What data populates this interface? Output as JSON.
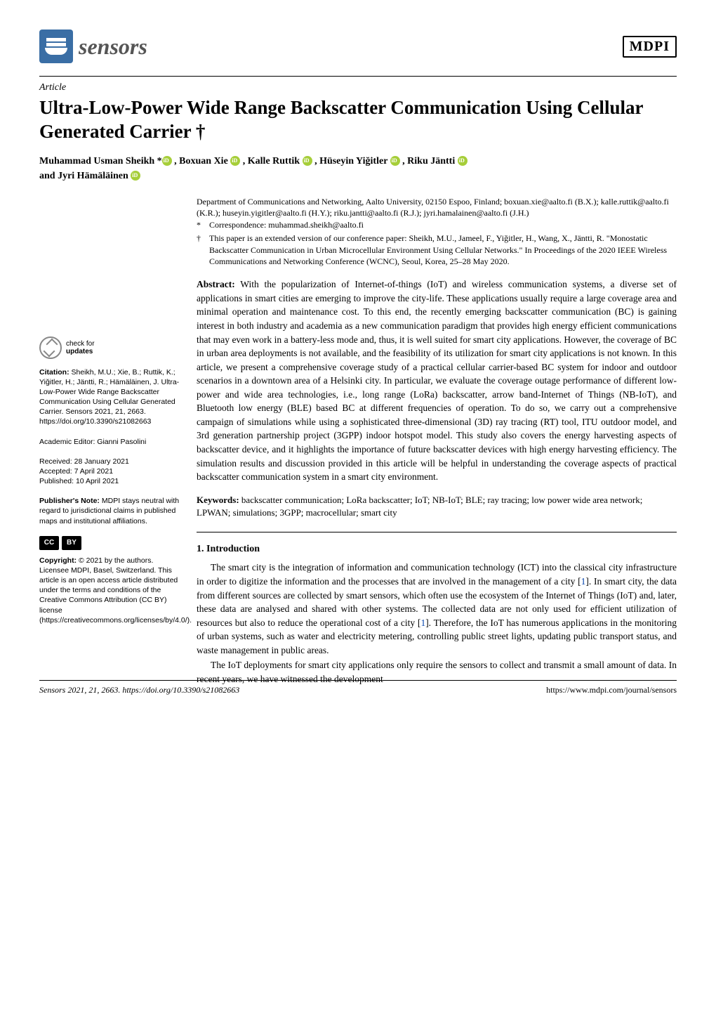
{
  "header": {
    "journal_name": "sensors",
    "publisher_logo": "MDPI"
  },
  "article": {
    "type": "Article",
    "title": "Ultra-Low-Power Wide Range Backscatter Communication Using Cellular Generated Carrier †",
    "authors_line1": "Muhammad Usman Sheikh *",
    "authors_line1b": ", Boxuan Xie",
    "authors_line1c": ", Kalle Ruttik",
    "authors_line1d": ", Hüseyin Yiğitler",
    "authors_line1e": ", Riku Jäntti",
    "authors_line2": "and Jyri Hämäläinen"
  },
  "affiliation": {
    "dept": "Department of Communications and Networking, Aalto University, 02150 Espoo, Finland; boxuan.xie@aalto.fi (B.X.); kalle.ruttik@aalto.fi (K.R.); huseyin.yigitler@aalto.fi (H.Y.); riku.jantti@aalto.fi (R.J.); jyri.hamalainen@aalto.fi (J.H.)",
    "corr_marker": "*",
    "corr": "Correspondence: muhammad.sheikh@aalto.fi",
    "note_marker": "†",
    "note": "This paper is an extended version of our conference paper: Sheikh, M.U., Jameel, F., Yiğitler, H., Wang, X., Jäntti, R. \"Monostatic Backscatter Communication in Urban Microcellular Environment Using Cellular Networks.\" In Proceedings of the 2020 IEEE Wireless Communications and Networking Conference (WCNC), Seoul, Korea, 25–28 May 2020."
  },
  "abstract": {
    "label": "Abstract:",
    "text": "With the popularization of Internet-of-things (IoT) and wireless communication systems, a diverse set of applications in smart cities are emerging to improve the city-life. These applications usually require a large coverage area and minimal operation and maintenance cost. To this end, the recently emerging backscatter communication (BC) is gaining interest in both industry and academia as a new communication paradigm that provides high energy efficient communications that may even work in a battery-less mode and, thus, it is well suited for smart city applications. However, the coverage of BC in urban area deployments is not available, and the feasibility of its utilization for smart city applications is not known. In this article, we present a comprehensive coverage study of a practical cellular carrier-based BC system for indoor and outdoor scenarios in a downtown area of a Helsinki city. In particular, we evaluate the coverage outage performance of different low-power and wide area technologies, i.e., long range (LoRa) backscatter, arrow band-Internet of Things (NB-IoT), and Bluetooth low energy (BLE) based BC at different frequencies of operation. To do so, we carry out a comprehensive campaign of simulations while using a sophisticated three-dimensional (3D) ray tracing (RT) tool, ITU outdoor model, and 3rd generation partnership project (3GPP) indoor hotspot model. This study also covers the energy harvesting aspects of backscatter device, and it highlights the importance of future backscatter devices with high energy harvesting efficiency. The simulation results and discussion provided in this article will be helpful in understanding the coverage aspects of practical backscatter communication system in a smart city environment."
  },
  "keywords": {
    "label": "Keywords:",
    "text": "backscatter communication; LoRa backscatter; IoT; NB-IoT; BLE; ray tracing; low power wide area network; LPWAN; simulations; 3GPP; macrocellular; smart city"
  },
  "intro": {
    "heading": "1. Introduction",
    "p1a": "The smart city is the integration of information and communication technology (ICT) into the classical city infrastructure in order to digitize the information and the processes that are involved in the management of a city [",
    "c1": "1",
    "p1b": "]. In smart city, the data from different sources are collected by smart sensors, which often use the ecosystem of the Internet of Things (IoT) and, later, these data are analysed and shared with other systems. The collected data are not only used for efficient utilization of resources but also to reduce the operational cost of a city [",
    "c2": "1",
    "p1c": "]. Therefore, the IoT has numerous applications in the monitoring of urban systems, such as water and electricity metering, controlling public street lights, updating public transport status, and waste management in public areas.",
    "p2": "The IoT deployments for smart city applications only require the sensors to collect and transmit a small amount of data. In recent years, we have witnessed the development"
  },
  "sidebar": {
    "updates_line1": "check for",
    "updates_line2": "updates",
    "citation_label": "Citation:",
    "citation_text": "Sheikh, M.U.; Xie, B.; Ruttik, K.; Yiğitler, H.; Jäntti, R.; Hämäläinen, J. Ultra-Low-Power Wide Range Backscatter Communication Using Cellular Generated Carrier. Sensors 2021, 21, 2663. https://doi.org/10.3390/s21082663",
    "editor": "Academic Editor: Gianni Pasolini",
    "received": "Received: 28 January 2021",
    "accepted": "Accepted: 7 April 2021",
    "published": "Published: 10 April 2021",
    "pubnote_label": "Publisher's Note:",
    "pubnote_text": "MDPI stays neutral with regard to jurisdictional claims in published maps and institutional affiliations.",
    "cc": "CC",
    "by": "BY",
    "copyright_label": "Copyright:",
    "copyright_text": "© 2021 by the authors. Licensee MDPI, Basel, Switzerland. This article is an open access article distributed under the terms and conditions of the Creative Commons Attribution (CC BY) license (https://creativecommons.org/licenses/by/4.0/)."
  },
  "footer": {
    "left": "Sensors 2021, 21, 2663. https://doi.org/10.3390/s21082663",
    "right": "https://www.mdpi.com/journal/sensors"
  }
}
